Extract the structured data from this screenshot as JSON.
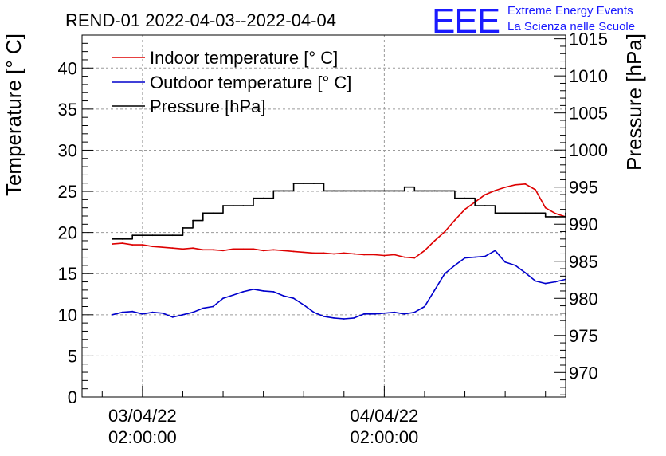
{
  "chart_data": {
    "type": "line",
    "title": "REND-01 2022-04-03--2022-04-04",
    "logo": {
      "mark": "EEE",
      "line1": "Extreme Energy Events",
      "line2": "La Scienza nelle Scuole"
    },
    "ylabel_left": "Temperature [° C]",
    "ylabel_right": "Pressure [hPa]",
    "xlim": [
      0,
      48
    ],
    "ylim_left": [
      0,
      44
    ],
    "ylim_right": [
      966.7,
      1015.5
    ],
    "grid": true,
    "legend_position": "top-left",
    "left_ticks": [
      "0",
      "5",
      "10",
      "15",
      "20",
      "25",
      "30",
      "35",
      "40"
    ],
    "right_ticks": [
      "970",
      "975",
      "980",
      "985",
      "990",
      "995",
      "1000",
      "1005",
      "1010",
      "1015"
    ],
    "x_ticks": [
      {
        "x": 6,
        "label_date": "03/04/22",
        "label_time": "02:00:00"
      },
      {
        "x": 30,
        "label_date": "04/04/22",
        "label_time": "02:00:00"
      }
    ],
    "series": [
      {
        "name": "Indoor temperature [° C]",
        "color": "#dd0000",
        "axis": "left",
        "x": [
          3,
          4,
          5,
          6,
          7,
          8,
          9,
          10,
          11,
          12,
          13,
          14,
          15,
          16,
          17,
          18,
          19,
          20,
          21,
          22,
          23,
          24,
          25,
          26,
          27,
          28,
          29,
          30,
          31,
          32,
          33,
          34,
          35,
          36,
          37,
          38,
          39,
          40,
          41,
          42,
          43,
          44,
          45,
          46,
          47,
          48
        ],
        "values": [
          18.6,
          18.7,
          18.5,
          18.5,
          18.3,
          18.2,
          18.1,
          18.0,
          18.1,
          17.9,
          17.9,
          17.8,
          18.0,
          18.0,
          18.0,
          17.8,
          17.9,
          17.8,
          17.7,
          17.6,
          17.5,
          17.5,
          17.4,
          17.5,
          17.4,
          17.3,
          17.3,
          17.2,
          17.3,
          17.0,
          16.9,
          17.8,
          19.0,
          20.1,
          21.5,
          22.8,
          23.7,
          24.6,
          25.1,
          25.5,
          25.8,
          25.9,
          25.2,
          23.0,
          22.3,
          21.9
        ]
      },
      {
        "name": "Outdoor temperature [° C]",
        "color": "#0000cc",
        "axis": "left",
        "x": [
          3,
          4,
          5,
          6,
          7,
          8,
          9,
          10,
          11,
          12,
          13,
          14,
          15,
          16,
          17,
          18,
          19,
          20,
          21,
          22,
          23,
          24,
          25,
          26,
          27,
          28,
          29,
          30,
          31,
          32,
          33,
          34,
          35,
          36,
          37,
          38,
          39,
          40,
          41,
          42,
          43,
          44,
          45,
          46,
          47,
          48
        ],
        "values": [
          10.0,
          10.3,
          10.4,
          10.1,
          10.3,
          10.2,
          9.7,
          10.0,
          10.3,
          10.8,
          11.0,
          12.0,
          12.4,
          12.8,
          13.1,
          12.9,
          12.8,
          12.3,
          12.0,
          11.2,
          10.3,
          9.8,
          9.6,
          9.5,
          9.6,
          10.1,
          10.1,
          10.2,
          10.3,
          10.1,
          10.3,
          11.0,
          13.0,
          15.0,
          16.0,
          16.9,
          17.0,
          17.1,
          17.8,
          16.4,
          16.0,
          15.1,
          14.1,
          13.8,
          14.0,
          14.3
        ]
      },
      {
        "name": "Pressure [hPa]",
        "color": "#000000",
        "axis": "right",
        "step": true,
        "x": [
          3,
          4,
          5,
          6,
          7,
          8,
          9,
          10,
          11,
          12,
          13,
          14,
          15,
          16,
          17,
          18,
          19,
          20,
          21,
          22,
          23,
          24,
          25,
          26,
          27,
          28,
          29,
          30,
          31,
          32,
          33,
          34,
          35,
          36,
          37,
          38,
          39,
          40,
          41,
          42,
          43,
          44,
          45,
          46,
          47,
          48
        ],
        "values": [
          988,
          988,
          988.5,
          988.5,
          988.5,
          988.5,
          988.5,
          989.5,
          990.5,
          991.5,
          991.5,
          992.5,
          992.5,
          992.5,
          993.5,
          993.5,
          994.5,
          994.5,
          995.5,
          995.5,
          995.5,
          994.5,
          994.5,
          994.5,
          994.5,
          994.5,
          994.5,
          994.5,
          994.5,
          995,
          994.5,
          994.5,
          994.5,
          994.5,
          993.5,
          993.5,
          992.5,
          992.5,
          991.5,
          991.5,
          991.5,
          991.5,
          991.5,
          991,
          991,
          991.5
        ]
      }
    ]
  }
}
